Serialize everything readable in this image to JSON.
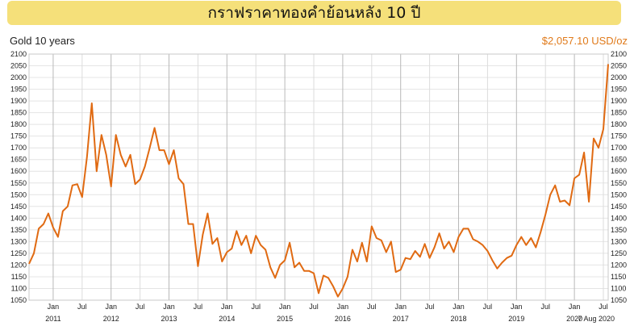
{
  "banner": {
    "title": "กราฟราคาทองคำย้อนหลัง 10 ปี"
  },
  "subtitle_left": "Gold 10 years",
  "subtitle_right": "$2,057.10 USD/oz",
  "colors": {
    "line": "#e06a12",
    "banner": "#f5e07a",
    "price_text": "#e07a1a",
    "grid": "#d0d0d0"
  },
  "chart_data": {
    "type": "line",
    "ylim": [
      1050,
      2100
    ],
    "y_ticks": [
      1050,
      1100,
      1150,
      1200,
      1250,
      1300,
      1350,
      1400,
      1450,
      1500,
      1550,
      1600,
      1650,
      1700,
      1750,
      1800,
      1850,
      1900,
      1950,
      2000,
      2050,
      2100
    ],
    "x_month_ticks": [
      {
        "x": "2011-01",
        "label": "Jan"
      },
      {
        "x": "2011-07",
        "label": "Jul"
      },
      {
        "x": "2012-01",
        "label": "Jan"
      },
      {
        "x": "2012-07",
        "label": "Jul"
      },
      {
        "x": "2013-01",
        "label": "Jan"
      },
      {
        "x": "2013-07",
        "label": "Jul"
      },
      {
        "x": "2014-01",
        "label": "Jan"
      },
      {
        "x": "2014-07",
        "label": "Jul"
      },
      {
        "x": "2015-01",
        "label": "Jan"
      },
      {
        "x": "2015-07",
        "label": "Jul"
      },
      {
        "x": "2016-01",
        "label": "Jan"
      },
      {
        "x": "2016-07",
        "label": "Jul"
      },
      {
        "x": "2017-01",
        "label": "Jan"
      },
      {
        "x": "2017-07",
        "label": "Jul"
      },
      {
        "x": "2018-01",
        "label": "Jan"
      },
      {
        "x": "2018-07",
        "label": "Jul"
      },
      {
        "x": "2019-01",
        "label": "Jan"
      },
      {
        "x": "2019-07",
        "label": "Jul"
      },
      {
        "x": "2020-01",
        "label": "Jan"
      },
      {
        "x": "2020-07",
        "label": "Jul"
      }
    ],
    "x_year_labels": [
      {
        "x": "2011-01",
        "label": "2011"
      },
      {
        "x": "2012-01",
        "label": "2012"
      },
      {
        "x": "2013-01",
        "label": "2013"
      },
      {
        "x": "2014-01",
        "label": "2014"
      },
      {
        "x": "2015-01",
        "label": "2015"
      },
      {
        "x": "2016-01",
        "label": "2016"
      },
      {
        "x": "2017-01",
        "label": "2017"
      },
      {
        "x": "2018-01",
        "label": "2018"
      },
      {
        "x": "2019-01",
        "label": "2019"
      },
      {
        "x": "2020-01",
        "label": "2020"
      }
    ],
    "end_label": {
      "x": "2020-08",
      "label": "7 Aug 2020"
    },
    "series": [
      {
        "x": [
          "2010-08",
          "2010-09",
          "2010-10",
          "2010-11",
          "2010-12",
          "2011-01",
          "2011-02",
          "2011-03",
          "2011-04",
          "2011-05",
          "2011-06",
          "2011-07",
          "2011-08",
          "2011-09",
          "2011-10",
          "2011-11",
          "2011-12",
          "2012-01",
          "2012-02",
          "2012-03",
          "2012-04",
          "2012-05",
          "2012-06",
          "2012-07",
          "2012-08",
          "2012-09",
          "2012-10",
          "2012-11",
          "2012-12",
          "2013-01",
          "2013-02",
          "2013-03",
          "2013-04",
          "2013-05",
          "2013-06",
          "2013-07",
          "2013-08",
          "2013-09",
          "2013-10",
          "2013-11",
          "2013-12",
          "2014-01",
          "2014-02",
          "2014-03",
          "2014-04",
          "2014-05",
          "2014-06",
          "2014-07",
          "2014-08",
          "2014-09",
          "2014-10",
          "2014-11",
          "2014-12",
          "2015-01",
          "2015-02",
          "2015-03",
          "2015-04",
          "2015-05",
          "2015-06",
          "2015-07",
          "2015-08",
          "2015-09",
          "2015-10",
          "2015-11",
          "2015-12",
          "2016-01",
          "2016-02",
          "2016-03",
          "2016-04",
          "2016-05",
          "2016-06",
          "2016-07",
          "2016-08",
          "2016-09",
          "2016-10",
          "2016-11",
          "2016-12",
          "2017-01",
          "2017-02",
          "2017-03",
          "2017-04",
          "2017-05",
          "2017-06",
          "2017-07",
          "2017-08",
          "2017-09",
          "2017-10",
          "2017-11",
          "2017-12",
          "2018-01",
          "2018-02",
          "2018-03",
          "2018-04",
          "2018-05",
          "2018-06",
          "2018-07",
          "2018-08",
          "2018-09",
          "2018-10",
          "2018-11",
          "2018-12",
          "2019-01",
          "2019-02",
          "2019-03",
          "2019-04",
          "2019-05",
          "2019-06",
          "2019-07",
          "2019-08",
          "2019-09",
          "2019-10",
          "2019-11",
          "2019-12",
          "2020-01",
          "2020-02",
          "2020-03",
          "2020-04",
          "2020-05",
          "2020-06",
          "2020-07",
          "2020-08"
        ],
        "values": [
          1205,
          1250,
          1355,
          1375,
          1420,
          1360,
          1320,
          1430,
          1450,
          1540,
          1545,
          1490,
          1660,
          1890,
          1600,
          1755,
          1670,
          1535,
          1755,
          1670,
          1620,
          1670,
          1545,
          1565,
          1620,
          1700,
          1785,
          1690,
          1690,
          1630,
          1690,
          1570,
          1545,
          1375,
          1375,
          1195,
          1330,
          1420,
          1290,
          1315,
          1215,
          1255,
          1270,
          1345,
          1285,
          1325,
          1250,
          1325,
          1285,
          1265,
          1190,
          1145,
          1200,
          1220,
          1295,
          1190,
          1210,
          1175,
          1175,
          1165,
          1080,
          1155,
          1145,
          1110,
          1065,
          1100,
          1150,
          1265,
          1215,
          1295,
          1215,
          1365,
          1315,
          1305,
          1255,
          1300,
          1170,
          1180,
          1230,
          1225,
          1260,
          1235,
          1290,
          1230,
          1275,
          1335,
          1270,
          1300,
          1255,
          1320,
          1355,
          1355,
          1310,
          1300,
          1285,
          1260,
          1220,
          1185,
          1210,
          1230,
          1240,
          1285,
          1320,
          1285,
          1315,
          1275,
          1340,
          1415,
          1500,
          1540,
          1470,
          1475,
          1455,
          1570,
          1585,
          1680,
          1470,
          1740,
          1700,
          1780,
          2057.1
        ]
      }
    ]
  }
}
